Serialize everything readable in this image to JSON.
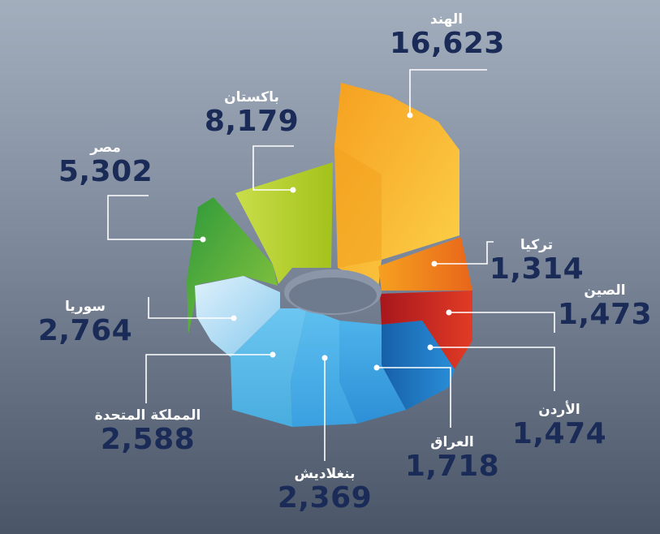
{
  "chart_data": {
    "type": "pie",
    "categories": [
      "الهند",
      "تركيا",
      "الصين",
      "الأردن",
      "العراق",
      "بنغلاديش",
      "المملكة المتحدة",
      "سوريا",
      "مصر",
      "باكستان"
    ],
    "values": [
      16623,
      1314,
      1473,
      1474,
      1718,
      2369,
      2588,
      2764,
      5302,
      8179
    ],
    "value_labels": [
      "16,623",
      "1,314",
      "1,473",
      "1,474",
      "1,718",
      "2,369",
      "2,588",
      "2,764",
      "5,302",
      "8,179"
    ],
    "colors": [
      "#f7a21b",
      "#ef7a1a",
      "#d3262a",
      "#1e7cc6",
      "#3aa1e0",
      "#45aee6",
      "#5cbaea",
      "#a7d8f2",
      "#4fa83a",
      "#a8c51b"
    ]
  }
}
